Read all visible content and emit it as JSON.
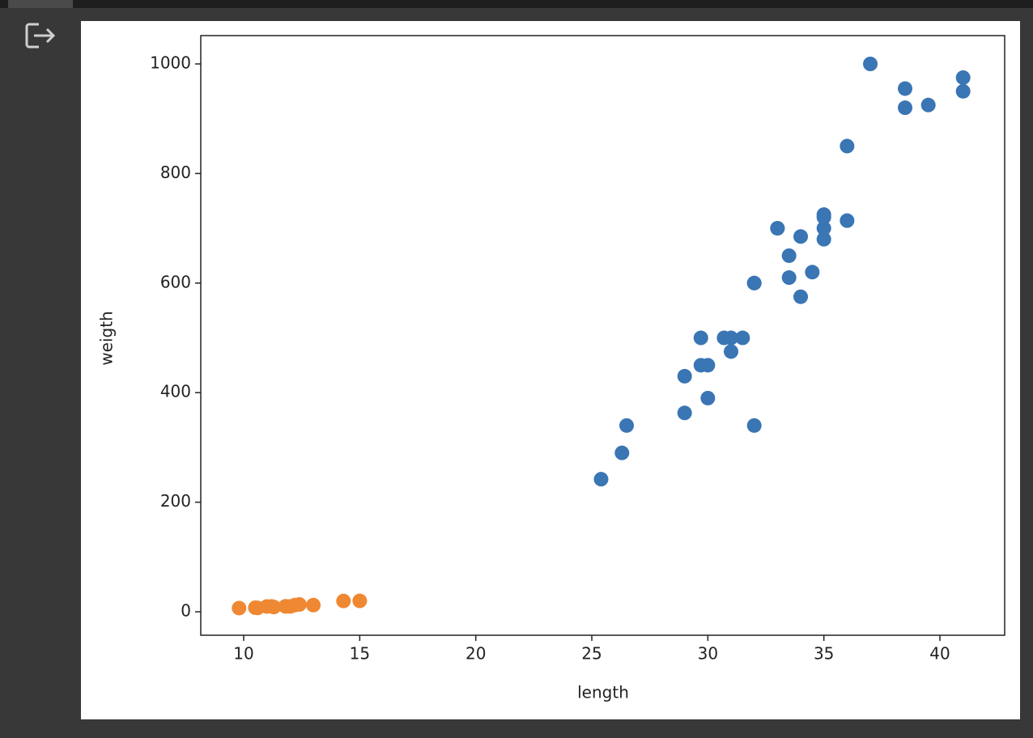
{
  "chart_data": {
    "type": "scatter",
    "x_label": "length",
    "y_label": "weigth",
    "xlim": [
      8.15,
      42.79
    ],
    "ylim": [
      -42.8,
      1051.7
    ],
    "xticks": [
      10,
      15,
      20,
      25,
      30,
      35,
      40
    ],
    "yticks": [
      0,
      200,
      400,
      600,
      800,
      1000
    ],
    "series": [
      {
        "color": "#3a75b4",
        "x": [
          25.4,
          26.3,
          26.5,
          29.0,
          29.0,
          29.7,
          29.7,
          30.0,
          30.0,
          30.7,
          31.0,
          31.0,
          31.5,
          32.0,
          32.0,
          32.0,
          33.0,
          33.0,
          33.5,
          33.5,
          34.0,
          34.0,
          34.5,
          35.0,
          35.0,
          35.0,
          35.0,
          36.0,
          36.0,
          37.0,
          38.5,
          38.5,
          39.5,
          41.0,
          41.0
        ],
        "values": [
          242,
          290,
          340,
          363,
          430,
          450,
          500,
          390,
          450,
          500,
          475,
          500,
          500,
          340,
          600,
          600,
          700,
          700,
          610,
          650,
          575,
          685,
          620,
          680,
          700,
          725,
          720,
          714,
          850,
          1000,
          920,
          955,
          925,
          975,
          950
        ]
      },
      {
        "color": "#ef8833",
        "x": [
          9.8,
          10.5,
          10.6,
          11.0,
          11.2,
          11.3,
          11.8,
          11.8,
          12.0,
          12.2,
          12.4,
          13.0,
          14.3,
          15.0
        ],
        "values": [
          6.7,
          7.5,
          7.0,
          9.7,
          9.8,
          8.7,
          10.0,
          9.9,
          9.8,
          12.2,
          13.4,
          12.2,
          19.7,
          19.9
        ]
      }
    ]
  }
}
